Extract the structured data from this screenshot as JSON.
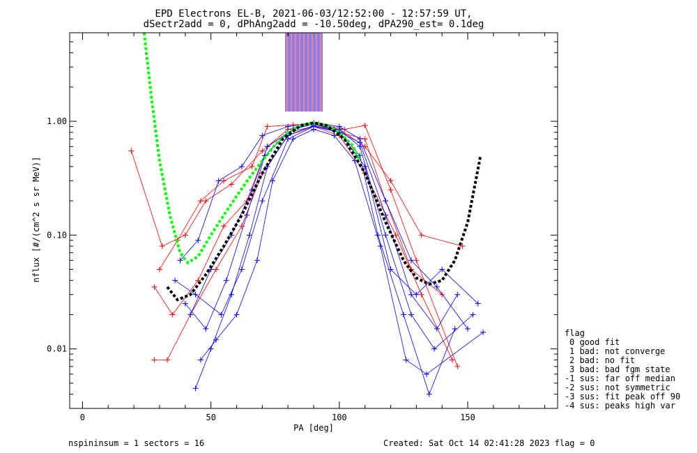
{
  "chart_data": {
    "type": "line",
    "title": "EPD Electrons EL-B, 2021-06-03/12:52:00 - 12:57:59 UT,",
    "subtitle": "dSectr2add = 0, dPhAng2add = -10.50deg, dPA290_est=   0.1deg",
    "xlabel": "PA [deg]",
    "ylabel": "nflux [#/(cm^2 s sr MeV)]",
    "xlim": [
      -5,
      185
    ],
    "ylim": [
      0.003,
      6
    ],
    "yscale": "log",
    "x_ticks": [
      0,
      50,
      100,
      150
    ],
    "x_tick_labels": [
      "0",
      "50",
      "100",
      "150"
    ],
    "y_ticks": [
      0.01,
      0.1,
      1.0
    ],
    "y_tick_labels": [
      "0.01",
      "0.10",
      "1.00"
    ],
    "grid": false,
    "colors": {
      "red": "#ff0000",
      "blue": "#0000ff",
      "green": "#00ff00",
      "black": "#000000"
    },
    "series": [
      {
        "color": "#ff0000",
        "x": [
          19,
          31,
          40,
          48,
          58,
          70,
          80,
          90,
          100,
          110,
          120,
          132,
          148
        ],
        "y": [
          0.55,
          0.08,
          0.1,
          0.2,
          0.28,
          0.55,
          0.85,
          0.95,
          0.85,
          0.6,
          0.3,
          0.1,
          0.08
        ]
      },
      {
        "color": "#ff0000",
        "x": [
          28,
          33,
          42,
          52,
          62,
          70,
          80,
          90,
          100,
          110,
          122,
          132,
          144
        ],
        "y": [
          0.008,
          0.008,
          0.02,
          0.05,
          0.12,
          0.35,
          0.75,
          0.9,
          0.75,
          0.35,
          0.1,
          0.03,
          0.008
        ]
      },
      {
        "color": "#ff0000",
        "x": [
          28,
          35,
          45,
          55,
          64,
          72,
          82,
          90,
          100,
          110,
          118,
          128,
          140
        ],
        "y": [
          0.035,
          0.02,
          0.04,
          0.12,
          0.2,
          0.6,
          0.85,
          0.95,
          0.8,
          0.7,
          0.2,
          0.05,
          0.03
        ]
      },
      {
        "color": "#ff0000",
        "x": [
          30,
          37,
          46,
          55,
          66,
          72,
          82,
          92,
          102,
          110,
          120,
          130,
          146
        ],
        "y": [
          0.05,
          0.09,
          0.2,
          0.3,
          0.4,
          0.9,
          0.93,
          0.95,
          0.85,
          0.92,
          0.25,
          0.06,
          0.007
        ]
      },
      {
        "color": "#0000ff",
        "x": [
          38,
          45,
          53,
          62,
          70,
          80,
          90,
          100,
          108,
          118,
          128,
          138,
          150
        ],
        "y": [
          0.06,
          0.09,
          0.3,
          0.4,
          0.75,
          0.9,
          0.97,
          0.9,
          0.7,
          0.2,
          0.06,
          0.035,
          0.015
        ]
      },
      {
        "color": "#0000ff",
        "x": [
          40,
          48,
          56,
          64,
          71,
          80,
          90,
          100,
          108,
          118,
          128,
          137,
          152
        ],
        "y": [
          0.025,
          0.015,
          0.04,
          0.15,
          0.5,
          0.8,
          0.9,
          0.85,
          0.6,
          0.1,
          0.02,
          0.01,
          0.02
        ]
      },
      {
        "color": "#0000ff",
        "x": [
          44,
          50,
          58,
          65,
          72,
          80,
          90,
          100,
          108,
          115,
          125,
          135,
          145
        ],
        "y": [
          0.0045,
          0.01,
          0.03,
          0.1,
          0.4,
          0.75,
          0.92,
          0.8,
          0.5,
          0.1,
          0.02,
          0.004,
          0.015
        ]
      },
      {
        "color": "#0000ff",
        "x": [
          42,
          50,
          58,
          66,
          72,
          82,
          90,
          98,
          108,
          118,
          128,
          138,
          146
        ],
        "y": [
          0.02,
          0.05,
          0.1,
          0.25,
          0.6,
          0.85,
          0.95,
          0.85,
          0.65,
          0.15,
          0.03,
          0.015,
          0.03
        ]
      },
      {
        "color": "#0000ff",
        "x": [
          46,
          52,
          60,
          68,
          74,
          82,
          90,
          98,
          106,
          116,
          126,
          134,
          156
        ],
        "y": [
          0.008,
          0.012,
          0.02,
          0.06,
          0.3,
          0.7,
          0.85,
          0.75,
          0.45,
          0.08,
          0.008,
          0.006,
          0.014
        ]
      },
      {
        "color": "#0000ff",
        "x": [
          36,
          44,
          54,
          62,
          70,
          80,
          90,
          100,
          110,
          120,
          130,
          140,
          154
        ],
        "y": [
          0.04,
          0.03,
          0.02,
          0.05,
          0.2,
          0.7,
          0.9,
          0.8,
          0.4,
          0.05,
          0.03,
          0.05,
          0.025
        ]
      }
    ],
    "fit_curves": [
      {
        "color": "#00ff00",
        "x": [
          24,
          27,
          30,
          34,
          38,
          41,
          45,
          50,
          55,
          60,
          65,
          70,
          75,
          80,
          85,
          90,
          95,
          100,
          105,
          108
        ],
        "y": [
          6,
          1.5,
          0.45,
          0.15,
          0.07,
          0.057,
          0.065,
          0.1,
          0.15,
          0.22,
          0.32,
          0.45,
          0.62,
          0.8,
          0.92,
          0.97,
          0.92,
          0.8,
          0.62,
          0.45
        ]
      },
      {
        "color": "#000000",
        "x": [
          33,
          37,
          42,
          48,
          55,
          62,
          70,
          78,
          85,
          90,
          95,
          102,
          110,
          118,
          125,
          130,
          135,
          140,
          145,
          150,
          155
        ],
        "y": [
          0.035,
          0.027,
          0.03,
          0.045,
          0.08,
          0.15,
          0.35,
          0.7,
          0.92,
          0.97,
          0.92,
          0.7,
          0.35,
          0.13,
          0.06,
          0.042,
          0.037,
          0.04,
          0.06,
          0.13,
          0.5
        ]
      }
    ],
    "legend": {
      "title": "flag",
      "placement": "right",
      "items": [
        "0 good fit",
        "1 bad: not converge",
        "2 bad: no fit",
        "3 bad: bad fgm state",
        "-1 sus: far off median",
        "-2 sus: not symmetric",
        "-3 sus: fit peak off 90",
        "-4 sus: peaks high var"
      ]
    },
    "footer_left": "nspininsum =  1  sectors = 16",
    "footer_right": "Created: Sat Oct 14 02:41:28 2023   flag = 0"
  }
}
